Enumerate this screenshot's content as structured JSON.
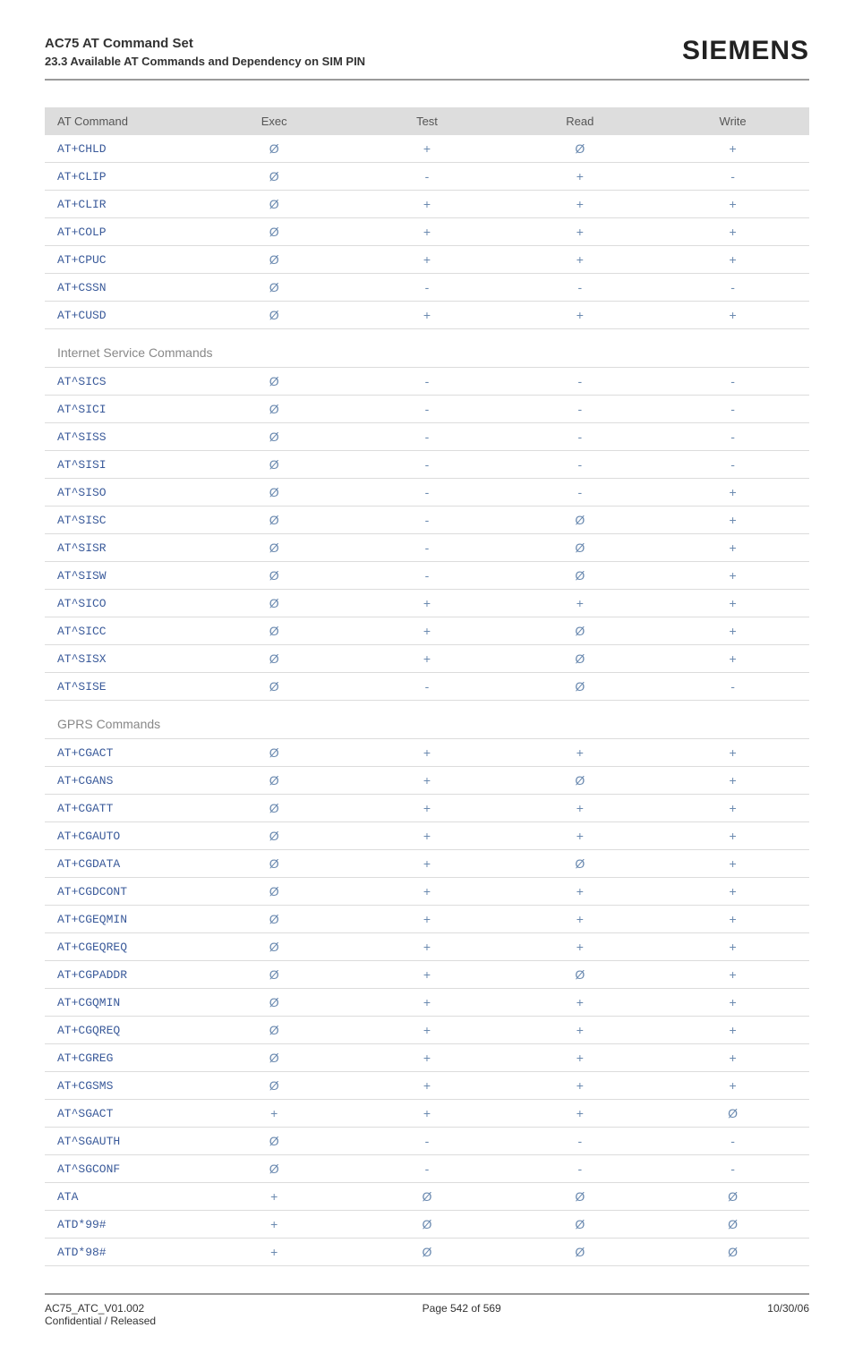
{
  "header": {
    "title": "AC75 AT Command Set",
    "subtitle": "23.3 Available AT Commands and Dependency on SIM PIN",
    "brand": "SIEMENS"
  },
  "columns": [
    "AT Command",
    "Exec",
    "Test",
    "Read",
    "Write"
  ],
  "symbols": {
    "null": "Ø",
    "plus": "+",
    "dash": "-"
  },
  "symbol_colors": {
    "null": "#6b8ab0",
    "plus": "#6b8ab0",
    "dash": "#6b8ab0"
  },
  "command_link_color": "#3a5a9a",
  "header_bg": "#dddddd",
  "row_border": "#dcdcdc",
  "sections": [
    {
      "title": null,
      "rows": [
        {
          "cmd": "AT+CHLD",
          "exec": "null",
          "test": "plus",
          "read": "null",
          "write": "plus"
        },
        {
          "cmd": "AT+CLIP",
          "exec": "null",
          "test": "dash",
          "read": "plus",
          "write": "dash"
        },
        {
          "cmd": "AT+CLIR",
          "exec": "null",
          "test": "plus",
          "read": "plus",
          "write": "plus"
        },
        {
          "cmd": "AT+COLP",
          "exec": "null",
          "test": "plus",
          "read": "plus",
          "write": "plus"
        },
        {
          "cmd": "AT+CPUC",
          "exec": "null",
          "test": "plus",
          "read": "plus",
          "write": "plus"
        },
        {
          "cmd": "AT+CSSN",
          "exec": "null",
          "test": "dash",
          "read": "dash",
          "write": "dash"
        },
        {
          "cmd": "AT+CUSD",
          "exec": "null",
          "test": "plus",
          "read": "plus",
          "write": "plus"
        }
      ]
    },
    {
      "title": "Internet Service Commands",
      "rows": [
        {
          "cmd": "AT^SICS",
          "exec": "null",
          "test": "dash",
          "read": "dash",
          "write": "dash"
        },
        {
          "cmd": "AT^SICI",
          "exec": "null",
          "test": "dash",
          "read": "dash",
          "write": "dash"
        },
        {
          "cmd": "AT^SISS",
          "exec": "null",
          "test": "dash",
          "read": "dash",
          "write": "dash"
        },
        {
          "cmd": "AT^SISI",
          "exec": "null",
          "test": "dash",
          "read": "dash",
          "write": "dash"
        },
        {
          "cmd": "AT^SISO",
          "exec": "null",
          "test": "dash",
          "read": "dash",
          "write": "plus"
        },
        {
          "cmd": "AT^SISC",
          "exec": "null",
          "test": "dash",
          "read": "null",
          "write": "plus"
        },
        {
          "cmd": "AT^SISR",
          "exec": "null",
          "test": "dash",
          "read": "null",
          "write": "plus"
        },
        {
          "cmd": "AT^SISW",
          "exec": "null",
          "test": "dash",
          "read": "null",
          "write": "plus"
        },
        {
          "cmd": "AT^SICO",
          "exec": "null",
          "test": "plus",
          "read": "plus",
          "write": "plus"
        },
        {
          "cmd": "AT^SICC",
          "exec": "null",
          "test": "plus",
          "read": "null",
          "write": "plus"
        },
        {
          "cmd": "AT^SISX",
          "exec": "null",
          "test": "plus",
          "read": "null",
          "write": "plus"
        },
        {
          "cmd": "AT^SISE",
          "exec": "null",
          "test": "dash",
          "read": "null",
          "write": "dash"
        }
      ]
    },
    {
      "title": "GPRS Commands",
      "rows": [
        {
          "cmd": "AT+CGACT",
          "exec": "null",
          "test": "plus",
          "read": "plus",
          "write": "plus"
        },
        {
          "cmd": "AT+CGANS",
          "exec": "null",
          "test": "plus",
          "read": "null",
          "write": "plus"
        },
        {
          "cmd": "AT+CGATT",
          "exec": "null",
          "test": "plus",
          "read": "plus",
          "write": "plus"
        },
        {
          "cmd": "AT+CGAUTO",
          "exec": "null",
          "test": "plus",
          "read": "plus",
          "write": "plus"
        },
        {
          "cmd": "AT+CGDATA",
          "exec": "null",
          "test": "plus",
          "read": "null",
          "write": "plus"
        },
        {
          "cmd": "AT+CGDCONT",
          "exec": "null",
          "test": "plus",
          "read": "plus",
          "write": "plus"
        },
        {
          "cmd": "AT+CGEQMIN",
          "exec": "null",
          "test": "plus",
          "read": "plus",
          "write": "plus"
        },
        {
          "cmd": "AT+CGEQREQ",
          "exec": "null",
          "test": "plus",
          "read": "plus",
          "write": "plus"
        },
        {
          "cmd": "AT+CGPADDR",
          "exec": "null",
          "test": "plus",
          "read": "null",
          "write": "plus"
        },
        {
          "cmd": "AT+CGQMIN",
          "exec": "null",
          "test": "plus",
          "read": "plus",
          "write": "plus"
        },
        {
          "cmd": "AT+CGQREQ",
          "exec": "null",
          "test": "plus",
          "read": "plus",
          "write": "plus"
        },
        {
          "cmd": "AT+CGREG",
          "exec": "null",
          "test": "plus",
          "read": "plus",
          "write": "plus"
        },
        {
          "cmd": "AT+CGSMS",
          "exec": "null",
          "test": "plus",
          "read": "plus",
          "write": "plus"
        },
        {
          "cmd": "AT^SGACT",
          "exec": "plus",
          "test": "plus",
          "read": "plus",
          "write": "null"
        },
        {
          "cmd": "AT^SGAUTH",
          "exec": "null",
          "test": "dash",
          "read": "dash",
          "write": "dash"
        },
        {
          "cmd": "AT^SGCONF",
          "exec": "null",
          "test": "dash",
          "read": "dash",
          "write": "dash"
        },
        {
          "cmd": "ATA",
          "exec": "plus",
          "test": "null",
          "read": "null",
          "write": "null"
        },
        {
          "cmd": "ATD*99#",
          "exec": "plus",
          "test": "null",
          "read": "null",
          "write": "null"
        },
        {
          "cmd": "ATD*98#",
          "exec": "plus",
          "test": "null",
          "read": "null",
          "write": "null"
        }
      ]
    }
  ],
  "footer": {
    "left1": "AC75_ATC_V01.002",
    "left2": "Confidential / Released",
    "center": "Page 542 of 569",
    "right": "10/30/06"
  }
}
